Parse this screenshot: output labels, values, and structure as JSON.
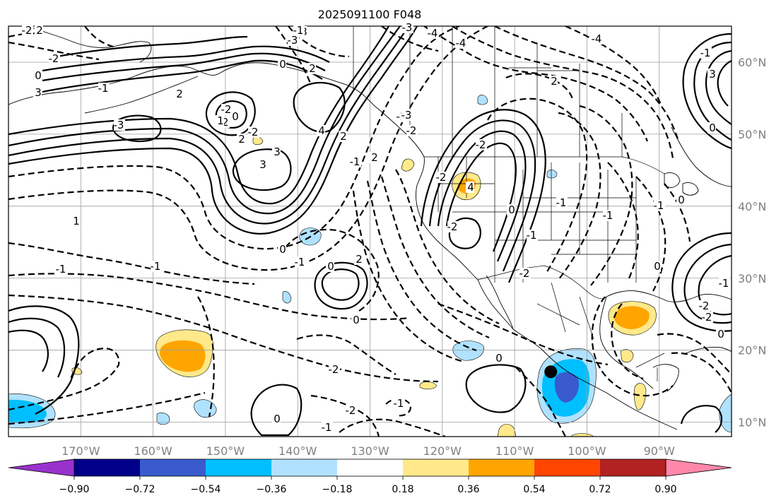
{
  "title": "2025091100 F048",
  "lon_ticks": [
    {
      "lon": -170,
      "label": "170°W"
    },
    {
      "lon": -160,
      "label": "160°W"
    },
    {
      "lon": -150,
      "label": "150°W"
    },
    {
      "lon": -140,
      "label": "140°W"
    },
    {
      "lon": -130,
      "label": "130°W"
    },
    {
      "lon": -120,
      "label": "120°W"
    },
    {
      "lon": -110,
      "label": "110°W"
    },
    {
      "lon": -100,
      "label": "100°W"
    },
    {
      "lon": -90,
      "label": "90°W"
    }
  ],
  "lat_ticks": [
    {
      "lat": 10,
      "label": "10°N"
    },
    {
      "lat": 20,
      "label": "20°N"
    },
    {
      "lat": 30,
      "label": "30°N"
    },
    {
      "lat": 40,
      "label": "40°N"
    },
    {
      "lat": 50,
      "label": "50°N"
    },
    {
      "lat": 60,
      "label": "60°N"
    }
  ],
  "extent": {
    "lon_min": -180,
    "lon_max": -80,
    "lat_min": 8,
    "lat_max": 65
  },
  "colorbar": {
    "extend": "both",
    "colors": [
      "#9932cc",
      "#00008b",
      "#3a5bcd",
      "#00bfff",
      "#b0e2ff",
      "#ffffff",
      "#ffe98a",
      "#ffa500",
      "#ff4500",
      "#b22222",
      "#ff88aa"
    ],
    "levels": [
      -0.9,
      -0.72,
      -0.54,
      -0.36,
      -0.18,
      0.18,
      0.36,
      0.54,
      0.72,
      0.9
    ],
    "tick_labels": [
      "−0.90",
      "−0.72",
      "−0.54",
      "−0.36",
      "−0.18",
      "0.18",
      "0.36",
      "0.54",
      "0.72",
      "0.90"
    ]
  },
  "contour_labels": [
    "-2",
    "2",
    "0",
    "0",
    "3",
    "-1",
    "1",
    "-2",
    "2",
    "-3",
    "-2",
    "-2",
    "1",
    "0",
    "2",
    "-2",
    "3",
    "3",
    "4",
    "3",
    "-3",
    "-1",
    "0",
    "2",
    "-3",
    "-4",
    "-4",
    "-4",
    "2",
    "-2",
    "4",
    "-2",
    "-1",
    "-3",
    "-2",
    "-2",
    "2",
    "2",
    "-1",
    "1",
    "-1",
    "-1",
    "0",
    "2",
    "-1",
    "0",
    "0",
    "-2",
    "-2",
    "-1",
    "-1",
    "0",
    "-1",
    "0",
    "-2",
    "-1",
    "-1",
    "-1",
    "0",
    "0",
    "-2",
    "0",
    "-1",
    "3",
    "-2",
    "0",
    "-1",
    "0"
  ],
  "marker": {
    "lon": -105,
    "lat": 17,
    "color": "#000000"
  }
}
